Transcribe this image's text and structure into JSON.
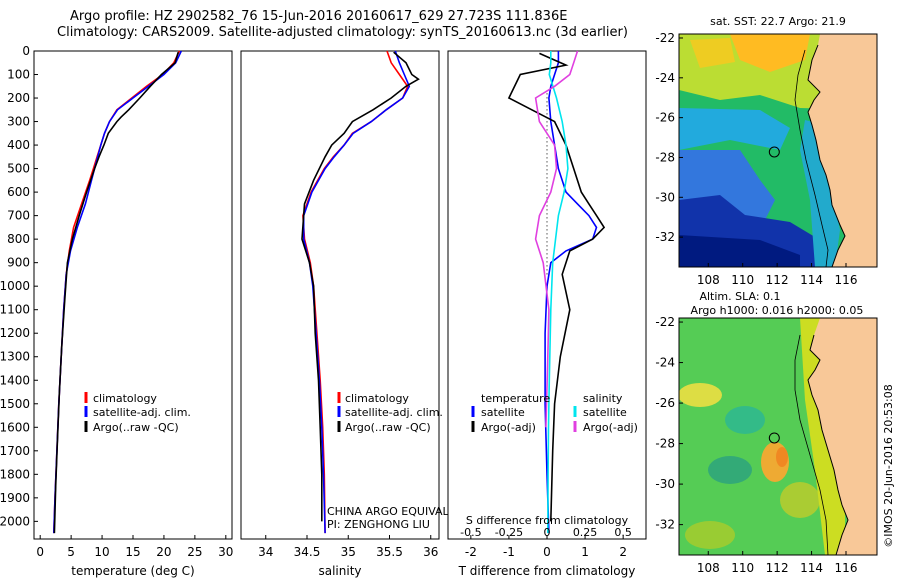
{
  "header": {
    "line1": "Argo profile: HZ 2902582_76 15-Jun-2016 20160617_629 27.723S 111.836E",
    "line2": "Climatology: CARS2009. Satellite-adjusted climatology: synTS_20160613.nc (3d earlier)"
  },
  "credit": "©IMOS 20-Jun-2016 20:53:08",
  "colors": {
    "climatology": "#ff0000",
    "satellite": "#0000ff",
    "argo": "#000000",
    "salinity_satellite": "#00e5ee",
    "salinity_argo": "#e040e0",
    "land": "#f8c898",
    "argo_marker": "#000000"
  },
  "chart_data": [
    {
      "id": "temperature",
      "type": "line",
      "xlabel": "temperature (deg C)",
      "ylabel": "",
      "xlim": [
        -1,
        31
      ],
      "ylim": [
        2075,
        0
      ],
      "xticks": [
        0,
        5,
        10,
        15,
        20,
        25,
        30
      ],
      "yticks": [
        0,
        100,
        200,
        300,
        400,
        500,
        600,
        700,
        800,
        900,
        1000,
        1100,
        1200,
        1300,
        1400,
        1500,
        1600,
        1700,
        1800,
        1900,
        2000
      ],
      "legend": [
        "climatology",
        "satellite-adj. clim.",
        "Argo(..raw -QC)"
      ],
      "series": [
        {
          "name": "climatology",
          "color": "#ff0000",
          "x": [
            22.5,
            21.6,
            19.8,
            17.2,
            14.8,
            12.4,
            11.2,
            10.4,
            9.8,
            9.2,
            8.6,
            8.0,
            6.7,
            5.4,
            4.7,
            4.2,
            3.8,
            3.4,
            3.0,
            2.7,
            2.4,
            2.2
          ],
          "y": [
            0,
            50,
            100,
            150,
            200,
            250,
            300,
            350,
            400,
            450,
            500,
            550,
            650,
            750,
            850,
            950,
            1100,
            1300,
            1500,
            1700,
            1900,
            2050
          ]
        },
        {
          "name": "satellite-adj. clim.",
          "color": "#0000ff",
          "x": [
            22.8,
            21.9,
            20.0,
            17.5,
            15.0,
            12.5,
            11.2,
            10.4,
            9.8,
            9.3,
            8.8,
            8.3,
            7.3,
            6.0,
            4.9,
            4.2,
            3.8,
            3.4,
            3.0,
            2.7,
            2.4,
            2.2
          ],
          "y": [
            0,
            50,
            100,
            150,
            200,
            250,
            300,
            350,
            400,
            450,
            500,
            550,
            650,
            750,
            850,
            950,
            1100,
            1300,
            1500,
            1700,
            1900,
            2050
          ]
        },
        {
          "name": "Argo(..raw -QC)",
          "color": "#000000",
          "x": [
            22.3,
            21.8,
            19.6,
            17.8,
            16.1,
            14.3,
            13.1,
            12.4,
            11.0,
            10.3,
            9.5,
            8.8,
            7.5,
            6.3,
            5.2,
            4.4,
            4.0,
            3.5,
            3.1,
            2.8,
            2.5,
            2.3
          ],
          "y": [
            5,
            50,
            100,
            150,
            200,
            250,
            280,
            300,
            350,
            400,
            450,
            500,
            600,
            700,
            800,
            900,
            1050,
            1250,
            1450,
            1650,
            1850,
            2050
          ]
        }
      ]
    },
    {
      "id": "salinity",
      "type": "line",
      "xlabel": "salinity",
      "ylabel": "",
      "xlim": [
        33.7,
        36.1
      ],
      "ylim": [
        2075,
        0
      ],
      "xticks": [
        34,
        34.5,
        35,
        35.5,
        36
      ],
      "yticks": [],
      "legend": [
        "climatology",
        "satellite-adj. clim.",
        "Argo(..raw -QC)"
      ],
      "annotations": [
        "CHINA ARGO EQUIVALENT",
        "PI: ZENGHONG LIU"
      ],
      "series": [
        {
          "name": "climatology",
          "color": "#ff0000",
          "x": [
            35.47,
            35.52,
            35.62,
            35.72,
            35.66,
            35.46,
            35.28,
            35.05,
            34.95,
            34.82,
            34.71,
            34.55,
            34.45,
            34.47,
            34.54,
            34.58,
            34.62,
            34.66,
            34.69,
            34.71,
            34.72
          ],
          "y": [
            0,
            50,
            100,
            150,
            200,
            250,
            300,
            350,
            400,
            450,
            500,
            600,
            700,
            800,
            900,
            1000,
            1200,
            1400,
            1600,
            1800,
            2050
          ]
        },
        {
          "name": "satellite-adj. clim.",
          "color": "#0000ff",
          "x": [
            35.57,
            35.62,
            35.68,
            35.74,
            35.66,
            35.46,
            35.28,
            35.06,
            34.95,
            34.83,
            34.72,
            34.56,
            34.46,
            34.46,
            34.53,
            34.57,
            34.61,
            34.65,
            34.68,
            34.7,
            34.72
          ],
          "y": [
            0,
            50,
            100,
            150,
            200,
            250,
            300,
            350,
            400,
            450,
            500,
            600,
            700,
            800,
            900,
            1000,
            1200,
            1400,
            1600,
            1800,
            2050
          ]
        },
        {
          "name": "Argo(..raw -QC)",
          "color": "#000000",
          "x": [
            35.55,
            35.7,
            35.77,
            35.85,
            35.7,
            35.52,
            35.3,
            35.05,
            34.95,
            34.8,
            34.72,
            34.58,
            34.47,
            34.44,
            34.53,
            34.58,
            34.6,
            34.64,
            34.66,
            34.68,
            34.68
          ],
          "y": [
            5,
            50,
            100,
            120,
            150,
            200,
            250,
            300,
            350,
            400,
            450,
            550,
            650,
            800,
            900,
            1000,
            1200,
            1400,
            1600,
            1800,
            2000
          ]
        }
      ]
    },
    {
      "id": "difference",
      "type": "line",
      "xlabel": "T difference from climatology",
      "xlabel_top": "S difference from climatology",
      "ylabel": "",
      "xlim": [
        -2.6,
        2.6
      ],
      "ylim": [
        2075,
        0
      ],
      "xticks": [
        -2,
        -1,
        0,
        1,
        2
      ],
      "xticks_top": [
        -0.5,
        -0.25,
        0,
        0.25,
        0.5
      ],
      "yticks": [],
      "legend_titles": [
        "temperature",
        "salinity"
      ],
      "legend": [
        "satellite",
        "Argo(-adj)",
        "satellite",
        "Argo(-adj)"
      ],
      "series": [
        {
          "name": "temperature satellite",
          "color": "#0000ff",
          "x": [
            0.3,
            0.3,
            0.2,
            0.1,
            0.05,
            0.1,
            0.2,
            0.3,
            0.5,
            0.8,
            1.1,
            1.3,
            1.2,
            0.5,
            0.1,
            0.0,
            -0.05,
            -0.05,
            0,
            0.05
          ],
          "y": [
            0,
            50,
            100,
            150,
            200,
            300,
            400,
            500,
            600,
            650,
            700,
            750,
            800,
            850,
            900,
            1000,
            1200,
            1500,
            1800,
            2050
          ]
        },
        {
          "name": "temperature Argo(-adj)",
          "color": "#000000",
          "x": [
            -0.2,
            0.5,
            -0.7,
            -1.0,
            -0.4,
            0.2,
            0.5,
            0.7,
            0.9,
            1.1,
            1.3,
            1.5,
            1.2,
            0.6,
            0.4,
            0.6,
            0.35,
            0.2,
            0.15,
            0.1
          ],
          "y": [
            10,
            60,
            100,
            200,
            250,
            300,
            400,
            500,
            600,
            650,
            700,
            750,
            800,
            850,
            950,
            1100,
            1300,
            1500,
            1700,
            2000
          ]
        },
        {
          "name": "salinity satellite",
          "color": "#00e5ee",
          "x": [
            0.1,
            0.1,
            0.06,
            0.25,
            0.4,
            0.5,
            0.55,
            0.45,
            0.3,
            0.15,
            0.1,
            0.06,
            0.04,
            0.03,
            0.02
          ],
          "y": [
            0,
            50,
            100,
            200,
            300,
            400,
            500,
            600,
            700,
            900,
            1100,
            1400,
            1600,
            1800,
            2050
          ]
        },
        {
          "name": "salinity Argo(-adj)",
          "color": "#e040e0",
          "x": [
            0.8,
            0.7,
            0.6,
            0.2,
            -0.3,
            -0.2,
            0.2,
            0.25,
            0.1,
            -0.2,
            -0.3,
            -0.1,
            0.05,
            0.02,
            -0.03
          ],
          "y": [
            0,
            50,
            100,
            150,
            200,
            300,
            400,
            500,
            600,
            700,
            800,
            900,
            1100,
            1300,
            1600
          ]
        }
      ]
    },
    {
      "id": "sst_map",
      "type": "heatmap",
      "title": "sat. SST: 22.7 Argo: 21.9",
      "xlim": [
        106.3,
        117.8
      ],
      "ylim": [
        -33.5,
        -21.8
      ],
      "xticks": [
        108,
        110,
        112,
        114,
        116
      ],
      "yticks": [
        -22,
        -24,
        -26,
        -28,
        -30,
        -32
      ],
      "argo_position": {
        "lon": 111.836,
        "lat": -27.723
      }
    },
    {
      "id": "sla_map",
      "type": "heatmap",
      "title": "Altim. SLA: 0.1",
      "subtitle": "Argo h1000: 0.016 h2000: 0.05",
      "xlim": [
        106.3,
        117.8
      ],
      "ylim": [
        -33.5,
        -21.8
      ],
      "xticks": [
        108,
        110,
        112,
        114,
        116
      ],
      "yticks": [
        -22,
        -24,
        -26,
        -28,
        -30,
        -32
      ],
      "argo_position": {
        "lon": 111.836,
        "lat": -27.723
      }
    }
  ]
}
